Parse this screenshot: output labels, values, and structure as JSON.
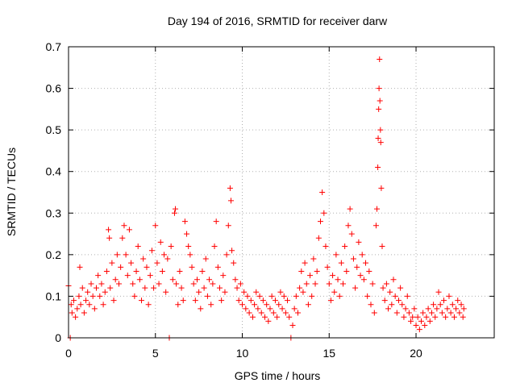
{
  "chart_data": {
    "type": "scatter",
    "title": "Day 194 of 2016, SRMTID for receiver darw",
    "xlabel": "GPS time / hours",
    "ylabel": "SRMTID / TECUs",
    "xlim": [
      0,
      24.5
    ],
    "ylim": [
      0,
      0.7
    ],
    "xticks": [
      0,
      5,
      10,
      15,
      20
    ],
    "yticks": [
      0,
      0.1,
      0.2,
      0.3,
      0.4,
      0.5,
      0.6,
      0.7
    ],
    "xtick_labels": [
      "0",
      "5",
      "10",
      "15",
      "20"
    ],
    "ytick_labels": [
      "0",
      "0.1",
      "0.2",
      "0.3",
      "0.4",
      "0.5",
      "0.6",
      "0.7"
    ],
    "grid": true,
    "marker": "plus",
    "color": "#ff0000",
    "series": [
      {
        "name": "SRMTID",
        "points": [
          [
            0.0,
            0.125
          ],
          [
            0.1,
            0.0
          ],
          [
            0.15,
            0.08
          ],
          [
            0.2,
            0.06
          ],
          [
            0.3,
            0.09
          ],
          [
            0.4,
            0.05
          ],
          [
            0.5,
            0.07
          ],
          [
            0.6,
            0.1
          ],
          [
            0.65,
            0.17
          ],
          [
            0.7,
            0.08
          ],
          [
            0.8,
            0.12
          ],
          [
            0.9,
            0.06
          ],
          [
            1.0,
            0.09
          ],
          [
            1.1,
            0.11
          ],
          [
            1.2,
            0.08
          ],
          [
            1.3,
            0.13
          ],
          [
            1.4,
            0.1
          ],
          [
            1.5,
            0.07
          ],
          [
            1.6,
            0.12
          ],
          [
            1.7,
            0.15
          ],
          [
            1.8,
            0.1
          ],
          [
            1.9,
            0.13
          ],
          [
            2.0,
            0.08
          ],
          [
            2.1,
            0.11
          ],
          [
            2.2,
            0.16
          ],
          [
            2.3,
            0.26
          ],
          [
            2.35,
            0.24
          ],
          [
            2.4,
            0.12
          ],
          [
            2.5,
            0.18
          ],
          [
            2.6,
            0.09
          ],
          [
            2.7,
            0.14
          ],
          [
            2.8,
            0.2
          ],
          [
            2.9,
            0.13
          ],
          [
            3.0,
            0.17
          ],
          [
            3.1,
            0.24
          ],
          [
            3.2,
            0.27
          ],
          [
            3.3,
            0.2
          ],
          [
            3.4,
            0.15
          ],
          [
            3.5,
            0.26
          ],
          [
            3.6,
            0.18
          ],
          [
            3.7,
            0.13
          ],
          [
            3.8,
            0.1
          ],
          [
            3.9,
            0.16
          ],
          [
            4.0,
            0.22
          ],
          [
            4.1,
            0.14
          ],
          [
            4.2,
            0.09
          ],
          [
            4.3,
            0.19
          ],
          [
            4.4,
            0.12
          ],
          [
            4.5,
            0.17
          ],
          [
            4.6,
            0.08
          ],
          [
            4.7,
            0.15
          ],
          [
            4.8,
            0.21
          ],
          [
            4.9,
            0.12
          ],
          [
            5.0,
            0.27
          ],
          [
            5.1,
            0.18
          ],
          [
            5.2,
            0.13
          ],
          [
            5.3,
            0.23
          ],
          [
            5.4,
            0.16
          ],
          [
            5.5,
            0.2
          ],
          [
            5.6,
            0.11
          ],
          [
            5.7,
            0.19
          ],
          [
            5.8,
            0.0
          ],
          [
            5.9,
            0.22
          ],
          [
            6.0,
            0.14
          ],
          [
            6.1,
            0.3
          ],
          [
            6.15,
            0.31
          ],
          [
            6.2,
            0.13
          ],
          [
            6.3,
            0.08
          ],
          [
            6.4,
            0.16
          ],
          [
            6.5,
            0.12
          ],
          [
            6.6,
            0.09
          ],
          [
            6.7,
            0.28
          ],
          [
            6.8,
            0.25
          ],
          [
            6.9,
            0.22
          ],
          [
            7.0,
            0.2
          ],
          [
            7.1,
            0.17
          ],
          [
            7.2,
            0.13
          ],
          [
            7.3,
            0.09
          ],
          [
            7.4,
            0.14
          ],
          [
            7.5,
            0.11
          ],
          [
            7.6,
            0.07
          ],
          [
            7.7,
            0.16
          ],
          [
            7.8,
            0.12
          ],
          [
            7.9,
            0.19
          ],
          [
            8.0,
            0.1
          ],
          [
            8.1,
            0.14
          ],
          [
            8.2,
            0.08
          ],
          [
            8.3,
            0.13
          ],
          [
            8.4,
            0.22
          ],
          [
            8.5,
            0.28
          ],
          [
            8.6,
            0.17
          ],
          [
            8.7,
            0.12
          ],
          [
            8.8,
            0.09
          ],
          [
            8.9,
            0.15
          ],
          [
            9.0,
            0.11
          ],
          [
            9.1,
            0.2
          ],
          [
            9.2,
            0.27
          ],
          [
            9.3,
            0.36
          ],
          [
            9.35,
            0.33
          ],
          [
            9.4,
            0.21
          ],
          [
            9.5,
            0.18
          ],
          [
            9.6,
            0.14
          ],
          [
            9.7,
            0.12
          ],
          [
            9.8,
            0.09
          ],
          [
            9.9,
            0.13
          ],
          [
            10.0,
            0.08
          ],
          [
            10.1,
            0.11
          ],
          [
            10.2,
            0.07
          ],
          [
            10.3,
            0.1
          ],
          [
            10.4,
            0.06
          ],
          [
            10.5,
            0.09
          ],
          [
            10.6,
            0.05
          ],
          [
            10.7,
            0.08
          ],
          [
            10.8,
            0.11
          ],
          [
            10.9,
            0.07
          ],
          [
            11.0,
            0.1
          ],
          [
            11.1,
            0.06
          ],
          [
            11.2,
            0.09
          ],
          [
            11.3,
            0.05
          ],
          [
            11.4,
            0.08
          ],
          [
            11.5,
            0.04
          ],
          [
            11.6,
            0.07
          ],
          [
            11.7,
            0.1
          ],
          [
            11.8,
            0.06
          ],
          [
            11.9,
            0.09
          ],
          [
            12.0,
            0.05
          ],
          [
            12.1,
            0.08
          ],
          [
            12.2,
            0.11
          ],
          [
            12.3,
            0.07
          ],
          [
            12.4,
            0.1
          ],
          [
            12.5,
            0.06
          ],
          [
            12.6,
            0.09
          ],
          [
            12.7,
            0.05
          ],
          [
            12.8,
            0.0
          ],
          [
            12.9,
            0.03
          ],
          [
            13.0,
            0.07
          ],
          [
            13.1,
            0.1
          ],
          [
            13.2,
            0.06
          ],
          [
            13.3,
            0.12
          ],
          [
            13.4,
            0.16
          ],
          [
            13.5,
            0.11
          ],
          [
            13.6,
            0.18
          ],
          [
            13.7,
            0.13
          ],
          [
            13.8,
            0.08
          ],
          [
            13.9,
            0.15
          ],
          [
            14.0,
            0.1
          ],
          [
            14.1,
            0.19
          ],
          [
            14.2,
            0.13
          ],
          [
            14.3,
            0.16
          ],
          [
            14.4,
            0.24
          ],
          [
            14.5,
            0.28
          ],
          [
            14.6,
            0.35
          ],
          [
            14.7,
            0.3
          ],
          [
            14.8,
            0.22
          ],
          [
            14.9,
            0.17
          ],
          [
            15.0,
            0.13
          ],
          [
            15.1,
            0.09
          ],
          [
            15.2,
            0.15
          ],
          [
            15.3,
            0.11
          ],
          [
            15.4,
            0.2
          ],
          [
            15.5,
            0.14
          ],
          [
            15.6,
            0.1
          ],
          [
            15.7,
            0.18
          ],
          [
            15.8,
            0.13
          ],
          [
            15.9,
            0.22
          ],
          [
            16.0,
            0.16
          ],
          [
            16.1,
            0.27
          ],
          [
            16.2,
            0.31
          ],
          [
            16.3,
            0.25
          ],
          [
            16.4,
            0.19
          ],
          [
            16.5,
            0.12
          ],
          [
            16.6,
            0.17
          ],
          [
            16.7,
            0.23
          ],
          [
            16.8,
            0.15
          ],
          [
            16.9,
            0.2
          ],
          [
            17.0,
            0.14
          ],
          [
            17.1,
            0.18
          ],
          [
            17.2,
            0.1
          ],
          [
            17.3,
            0.16
          ],
          [
            17.4,
            0.08
          ],
          [
            17.5,
            0.13
          ],
          [
            17.6,
            0.06
          ],
          [
            17.7,
            0.27
          ],
          [
            17.75,
            0.31
          ],
          [
            17.8,
            0.41
          ],
          [
            17.82,
            0.48
          ],
          [
            17.85,
            0.55
          ],
          [
            17.87,
            0.6
          ],
          [
            17.9,
            0.67
          ],
          [
            17.92,
            0.57
          ],
          [
            17.95,
            0.5
          ],
          [
            17.97,
            0.47
          ],
          [
            18.0,
            0.36
          ],
          [
            18.05,
            0.22
          ],
          [
            18.1,
            0.12
          ],
          [
            18.2,
            0.09
          ],
          [
            18.3,
            0.13
          ],
          [
            18.4,
            0.07
          ],
          [
            18.5,
            0.11
          ],
          [
            18.6,
            0.08
          ],
          [
            18.7,
            0.14
          ],
          [
            18.8,
            0.1
          ],
          [
            18.9,
            0.06
          ],
          [
            19.0,
            0.09
          ],
          [
            19.1,
            0.12
          ],
          [
            19.2,
            0.08
          ],
          [
            19.3,
            0.05
          ],
          [
            19.4,
            0.07
          ],
          [
            19.5,
            0.1
          ],
          [
            19.6,
            0.06
          ],
          [
            19.7,
            0.04
          ],
          [
            19.8,
            0.05
          ],
          [
            19.9,
            0.07
          ],
          [
            20.0,
            0.03
          ],
          [
            20.1,
            0.05
          ],
          [
            20.2,
            0.02
          ],
          [
            20.3,
            0.04
          ],
          [
            20.4,
            0.06
          ],
          [
            20.5,
            0.03
          ],
          [
            20.6,
            0.05
          ],
          [
            20.7,
            0.07
          ],
          [
            20.8,
            0.04
          ],
          [
            20.9,
            0.06
          ],
          [
            21.0,
            0.08
          ],
          [
            21.1,
            0.05
          ],
          [
            21.2,
            0.07
          ],
          [
            21.3,
            0.11
          ],
          [
            21.4,
            0.08
          ],
          [
            21.5,
            0.06
          ],
          [
            21.6,
            0.09
          ],
          [
            21.7,
            0.05
          ],
          [
            21.8,
            0.07
          ],
          [
            21.9,
            0.1
          ],
          [
            22.0,
            0.06
          ],
          [
            22.1,
            0.08
          ],
          [
            22.2,
            0.05
          ],
          [
            22.3,
            0.07
          ],
          [
            22.4,
            0.09
          ],
          [
            22.5,
            0.06
          ],
          [
            22.6,
            0.08
          ],
          [
            22.7,
            0.05
          ],
          [
            22.75,
            0.07
          ]
        ]
      }
    ]
  }
}
